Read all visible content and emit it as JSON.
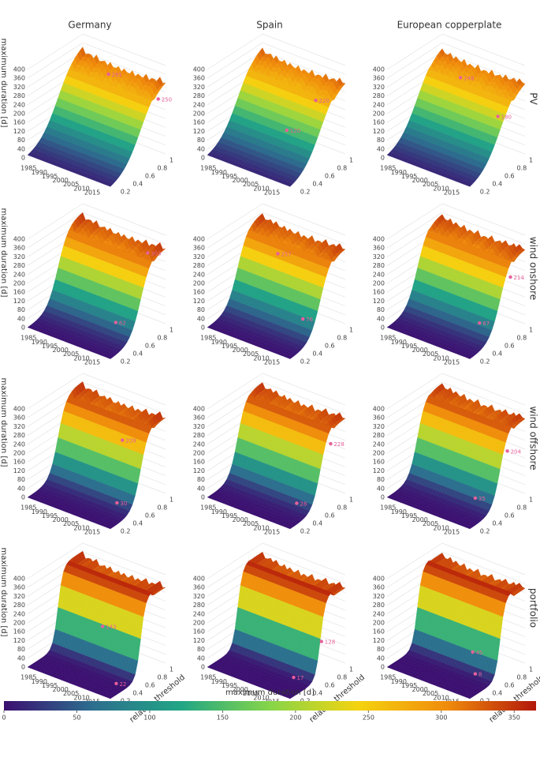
{
  "chart_data": [
    {
      "type": "surface3d",
      "title": "Germany",
      "zlabel": "maximum duration [d]",
      "zlim": [
        0,
        400
      ],
      "zticks": [
        0,
        40,
        80,
        120,
        160,
        200,
        240,
        280,
        320,
        360,
        400
      ],
      "xlim": [
        1980,
        2019
      ],
      "xticks": [
        1985,
        1990,
        1995,
        2000,
        2005,
        2010,
        2015
      ],
      "ylim": [
        0.1,
        1
      ],
      "yticks": [
        0.2,
        0.4,
        0.6,
        0.8,
        1
      ],
      "marker_color": "#e8609a",
      "points": {
        "x": [
          1995,
          2017
        ],
        "y": [
          0.9,
          0.95
        ],
        "values": [
          291,
          250
        ]
      }
    },
    {
      "type": "surface3d",
      "title": "Spain",
      "zlim": [
        0,
        400
      ],
      "zticks": [
        0,
        40,
        80,
        120,
        160,
        200,
        240,
        280,
        320,
        360,
        400
      ],
      "xlim": [
        1980,
        2019
      ],
      "xticks": [
        1985,
        1990,
        1995,
        2000,
        2005,
        2010,
        2015
      ],
      "ylim": [
        0.1,
        1
      ],
      "yticks": [
        0.2,
        0.4,
        0.6,
        0.8,
        1
      ],
      "marker_color": "#e8609a",
      "points": {
        "x": [
          2008,
          2003
        ],
        "y": [
          0.9,
          0.6
        ],
        "values": [
          220,
          120
        ]
      }
    },
    {
      "type": "surface3d",
      "title": "European copperplate",
      "row_label": "PV",
      "zlim": [
        0,
        400
      ],
      "zticks": [
        0,
        40,
        80,
        120,
        160,
        200,
        240,
        280,
        320,
        360,
        400
      ],
      "xlim": [
        1980,
        2019
      ],
      "xticks": [
        1985,
        1990,
        1995,
        2000,
        2005,
        2010,
        2015
      ],
      "ylim": [
        0.1,
        1
      ],
      "yticks": [
        0.2,
        0.4,
        0.6,
        0.8,
        1
      ],
      "marker_color": "#e8609a",
      "points": {
        "x": [
          1990,
          2012
        ],
        "y": [
          0.95,
          0.8
        ],
        "values": [
          248,
          180
        ]
      }
    },
    {
      "type": "surface3d",
      "zlabel": "maximum duration [d]",
      "zlim": [
        0,
        400
      ],
      "zticks": [
        0,
        40,
        80,
        120,
        160,
        200,
        240,
        280,
        320,
        360,
        400
      ],
      "xlim": [
        1980,
        2019
      ],
      "xticks": [
        1985,
        1990,
        1995,
        2000,
        2005,
        2010,
        2015
      ],
      "ylim": [
        0.1,
        1
      ],
      "yticks": [
        0.2,
        0.4,
        0.6,
        0.8,
        1
      ],
      "marker_color": "#e8609a",
      "points": {
        "x": [
          2012,
          2010
        ],
        "y": [
          0.95,
          0.5
        ],
        "values": [
          303,
          62
        ]
      }
    },
    {
      "type": "surface3d",
      "zlim": [
        0,
        400
      ],
      "zticks": [
        0,
        40,
        80,
        120,
        160,
        200,
        240,
        280,
        320,
        360,
        400
      ],
      "xlim": [
        1980,
        2019
      ],
      "xticks": [
        1985,
        1990,
        1995,
        2000,
        2005,
        2010,
        2015
      ],
      "ylim": [
        0.1,
        1
      ],
      "yticks": [
        0.2,
        0.4,
        0.6,
        0.8,
        1
      ],
      "marker_color": "#e8609a",
      "points": {
        "x": [
          1993,
          2012
        ],
        "y": [
          0.8,
          0.55
        ],
        "values": [
          257,
          76
        ]
      }
    },
    {
      "type": "surface3d",
      "row_label": "wind onshore",
      "zlim": [
        0,
        400
      ],
      "zticks": [
        0,
        40,
        80,
        120,
        160,
        200,
        240,
        280,
        320,
        360,
        400
      ],
      "xlim": [
        1980,
        2019
      ],
      "xticks": [
        1985,
        1990,
        1995,
        2000,
        2005,
        2010,
        2015
      ],
      "ylim": [
        0.1,
        1
      ],
      "yticks": [
        0.2,
        0.4,
        0.6,
        0.8,
        1
      ],
      "marker_color": "#e8609a",
      "points": {
        "x": [
          2015,
          2012
        ],
        "y": [
          0.9,
          0.5
        ],
        "values": [
          214,
          67
        ]
      }
    },
    {
      "type": "surface3d",
      "zlabel": "maximum duration [d]",
      "zlim": [
        0,
        400
      ],
      "zticks": [
        0,
        40,
        80,
        120,
        160,
        200,
        240,
        280,
        320,
        360,
        400
      ],
      "xlim": [
        1980,
        2019
      ],
      "xticks": [
        1985,
        1990,
        1995,
        2000,
        2005,
        2010,
        2015
      ],
      "ylim": [
        0.1,
        1
      ],
      "yticks": [
        0.2,
        0.4,
        0.6,
        0.8,
        1
      ],
      "marker_color": "#e8609a",
      "points": {
        "x": [
          2003,
          2012
        ],
        "y": [
          0.85,
          0.45
        ],
        "values": [
          209,
          30
        ]
      }
    },
    {
      "type": "surface3d",
      "zlim": [
        0,
        400
      ],
      "zticks": [
        0,
        40,
        80,
        120,
        160,
        200,
        240,
        280,
        320,
        360,
        400
      ],
      "xlim": [
        1980,
        2019
      ],
      "xticks": [
        1985,
        1990,
        1995,
        2000,
        2005,
        2010,
        2015
      ],
      "ylim": [
        0.1,
        1
      ],
      "yticks": [
        0.2,
        0.4,
        0.6,
        0.8,
        1
      ],
      "marker_color": "#e8609a",
      "points": {
        "x": [
          2015,
          2012
        ],
        "y": [
          0.9,
          0.45
        ],
        "values": [
          228,
          28
        ]
      }
    },
    {
      "type": "surface3d",
      "row_label": "wind offshore",
      "zlim": [
        0,
        400
      ],
      "zticks": [
        0,
        40,
        80,
        120,
        160,
        200,
        240,
        280,
        320,
        360,
        400
      ],
      "xlim": [
        1980,
        2019
      ],
      "xticks": [
        1985,
        1990,
        1995,
        2000,
        2005,
        2010,
        2015
      ],
      "ylim": [
        0.1,
        1
      ],
      "yticks": [
        0.2,
        0.4,
        0.6,
        0.8,
        1
      ],
      "marker_color": "#e8609a",
      "points": {
        "x": [
          2015,
          2010
        ],
        "y": [
          0.85,
          0.5
        ],
        "values": [
          204,
          35
        ]
      }
    },
    {
      "type": "surface3d",
      "zlabel": "maximum duration [d]",
      "ylabel": "relative threshold",
      "zlim": [
        0,
        400
      ],
      "zticks": [
        0,
        40,
        80,
        120,
        160,
        200,
        240,
        280,
        320,
        360,
        400
      ],
      "xlim": [
        1980,
        2019
      ],
      "xticks": [
        1985,
        1990,
        1995,
        2000,
        2005,
        2010,
        2015
      ],
      "ylim": [
        0.1,
        1
      ],
      "yticks": [
        0.2,
        0.4,
        0.6,
        0.8,
        1
      ],
      "marker_color": "#e8609a",
      "points": {
        "x": [
          1998,
          2016
        ],
        "y": [
          0.7,
          0.3
        ],
        "values": [
          143,
          22
        ]
      }
    },
    {
      "type": "surface3d",
      "ylabel": "relative threshold",
      "zlim": [
        0,
        400
      ],
      "zticks": [
        0,
        40,
        80,
        120,
        160,
        200,
        240,
        280,
        320,
        360,
        400
      ],
      "xlim": [
        1980,
        2019
      ],
      "xticks": [
        1985,
        1990,
        1995,
        2000,
        2005,
        2010,
        2015
      ],
      "ylim": [
        0.1,
        1
      ],
      "yticks": [
        0.2,
        0.4,
        0.6,
        0.8,
        1
      ],
      "marker_color": "#e8609a",
      "points": {
        "x": [
          2015,
          2012
        ],
        "y": [
          0.75,
          0.4
        ],
        "values": [
          128,
          17
        ]
      }
    },
    {
      "type": "surface3d",
      "row_label": "portfolio",
      "ylabel": "relative threshold",
      "zlim": [
        0,
        400
      ],
      "zticks": [
        0,
        40,
        80,
        120,
        160,
        200,
        240,
        280,
        320,
        360,
        400
      ],
      "xlim": [
        1980,
        2019
      ],
      "xticks": [
        1985,
        1990,
        1995,
        2000,
        2005,
        2010,
        2015
      ],
      "ylim": [
        0.1,
        1
      ],
      "yticks": [
        0.2,
        0.4,
        0.6,
        0.8,
        1
      ],
      "marker_color": "#e8609a",
      "points": {
        "x": [
          2003,
          2010
        ],
        "y": [
          0.7,
          0.5
        ],
        "values": [
          45,
          8
        ]
      }
    },
    {
      "type": "colorbar",
      "title": "maximum duration [d]",
      "xlim": [
        0,
        365
      ],
      "xticks": [
        0,
        50,
        100,
        150,
        200,
        250,
        300,
        350
      ],
      "colorscale": [
        "#3b0f70",
        "#2c6e8e",
        "#21a685",
        "#86d549",
        "#f5d30f",
        "#f08b0b",
        "#b2170b"
      ]
    }
  ]
}
